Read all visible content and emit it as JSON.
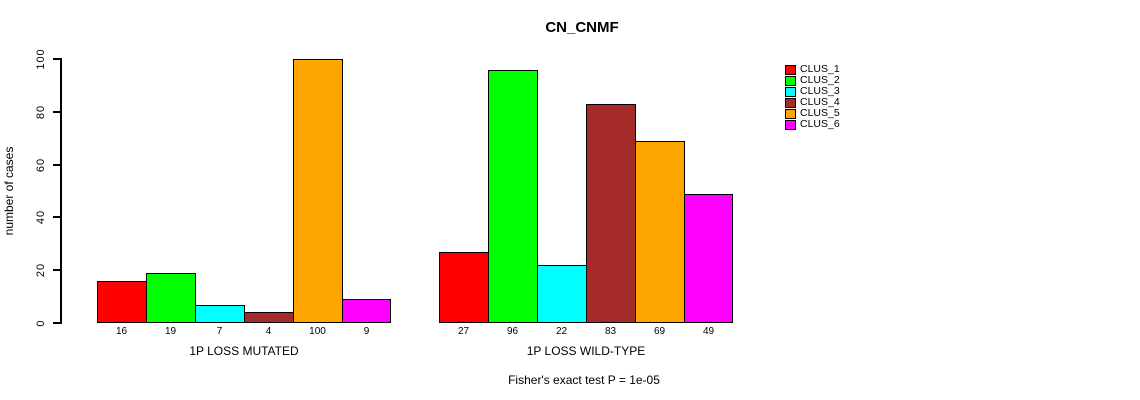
{
  "chart_data": {
    "type": "bar",
    "title": "CN_CNMF",
    "ylabel": "number of cases",
    "xlabel": "",
    "ylim": [
      0,
      100
    ],
    "yticks": [
      0,
      20,
      40,
      60,
      80,
      100
    ],
    "grid": false,
    "legend_position": "right",
    "categories": [
      "1P LOSS MUTATED",
      "1P LOSS WILD-TYPE"
    ],
    "series": [
      {
        "name": "CLUS_1",
        "color": "#FF0000",
        "values": [
          16,
          27
        ]
      },
      {
        "name": "CLUS_2",
        "color": "#00FF00",
        "values": [
          19,
          96
        ]
      },
      {
        "name": "CLUS_3",
        "color": "#00FFFF",
        "values": [
          7,
          22
        ]
      },
      {
        "name": "CLUS_4",
        "color": "#A52A2A",
        "values": [
          4,
          83
        ]
      },
      {
        "name": "CLUS_5",
        "color": "#FFA500",
        "values": [
          100,
          69
        ]
      },
      {
        "name": "CLUS_6",
        "color": "#FF00FF",
        "values": [
          9,
          49
        ]
      }
    ],
    "bar_value_labels_shown": true,
    "annotation": "Fisher's exact test P = 1e-05"
  }
}
